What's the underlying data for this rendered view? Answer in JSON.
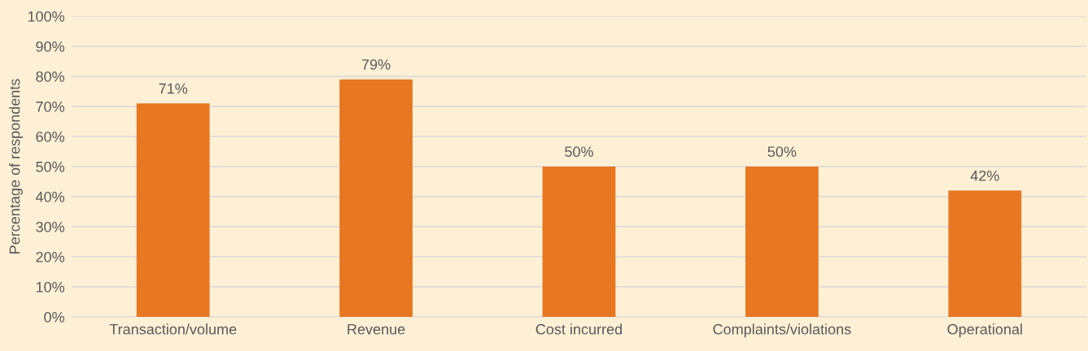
{
  "chart_data": {
    "type": "bar",
    "ylabel": "Percentage of respondents",
    "categories": [
      "Transaction/volume",
      "Revenue",
      "Cost incurred",
      "Complaints/violations",
      "Operational"
    ],
    "values": [
      71,
      79,
      50,
      50,
      42
    ],
    "color": "#e87722",
    "value_labels": [
      "71%",
      "79%",
      "50%",
      "50%",
      "42%"
    ],
    "ylim": [
      0,
      100
    ],
    "yticks": [
      {
        "value": 0,
        "label": "0%"
      },
      {
        "value": 10,
        "label": "10%"
      },
      {
        "value": 20,
        "label": "20%"
      },
      {
        "value": 30,
        "label": "30%"
      },
      {
        "value": 40,
        "label": "40%"
      },
      {
        "value": 50,
        "label": "50%"
      },
      {
        "value": 60,
        "label": "60%"
      },
      {
        "value": 70,
        "label": "70%"
      },
      {
        "value": 80,
        "label": "80%"
      },
      {
        "value": 90,
        "label": "90%"
      },
      {
        "value": 100,
        "label": "100%"
      }
    ],
    "grid": "y",
    "legend": false
  }
}
